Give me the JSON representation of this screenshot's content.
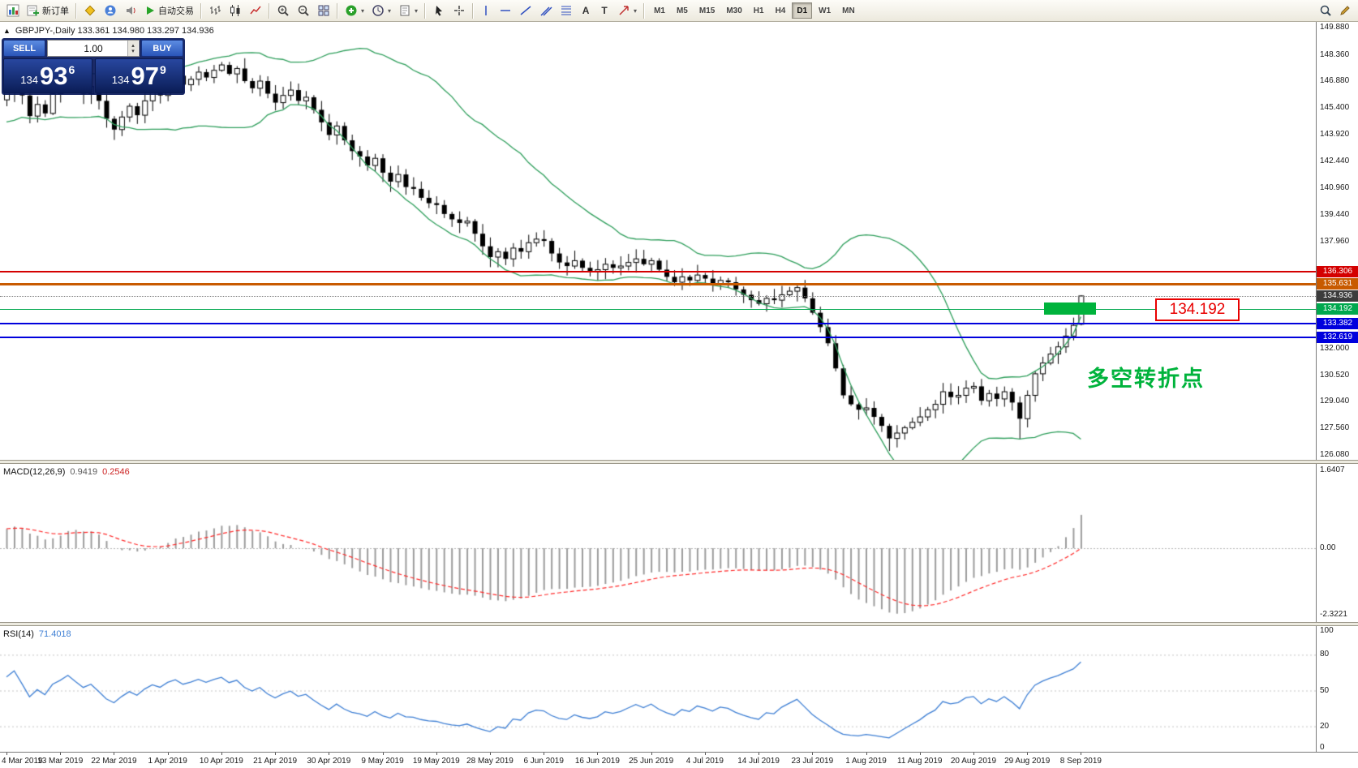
{
  "toolbar": {
    "new_order_label": "新订单",
    "auto_trading_label": "自动交易",
    "timeframes": [
      "M1",
      "M5",
      "M15",
      "M30",
      "H1",
      "H4",
      "D1",
      "W1",
      "MN"
    ],
    "active_timeframe": "D1"
  },
  "symbol_bar": {
    "collapse_icon": "▲",
    "text": "GBPJPY-,Daily 133.361 134.980 133.297 134.936"
  },
  "trade_panel": {
    "sell_label": "SELL",
    "buy_label": "BUY",
    "volume": "1.00",
    "sell_price": {
      "prefix": "134",
      "big": "93",
      "sup": "6"
    },
    "buy_price": {
      "prefix": "134",
      "big": "97",
      "sup": "9"
    }
  },
  "annotations": {
    "level_callout": "134.192",
    "turning_point": "多空转折点"
  },
  "indicators": {
    "macd": {
      "label": "MACD(12,26,9)",
      "value1": "0.9419",
      "value2": "0.2546",
      "scale": [
        "1.6407",
        "0.00",
        "-2.3221"
      ]
    },
    "rsi": {
      "label": "RSI(14)",
      "value": "71.4018",
      "scale": [
        "100",
        "80",
        "50",
        "20",
        "0"
      ]
    }
  },
  "price_axis": {
    "gridline_labels": [
      "149.880",
      "148.360",
      "146.880",
      "145.400",
      "143.920",
      "142.440",
      "140.960",
      "139.440",
      "137.960",
      "132.000",
      "130.520",
      "129.040",
      "127.560",
      "126.080"
    ]
  },
  "date_axis": [
    "4 Mar 2019",
    "13 Mar 2019",
    "22 Mar 2019",
    "1 Apr 2019",
    "10 Apr 2019",
    "21 Apr 2019",
    "30 Apr 2019",
    "9 May 2019",
    "19 May 2019",
    "28 May 2019",
    "6 Jun 2019",
    "16 Jun 2019",
    "25 Jun 2019",
    "4 Jul 2019",
    "14 Jul 2019",
    "23 Jul 2019",
    "1 Aug 2019",
    "11 Aug 2019",
    "20 Aug 2019",
    "29 Aug 2019",
    "8 Sep 2019"
  ],
  "chart_data": {
    "type": "candlestick",
    "symbol": "GBPJPY-",
    "timeframe": "Daily",
    "visible_bar_ohlc": {
      "open": 133.361,
      "high": 134.98,
      "low": 133.297,
      "close": 134.936
    },
    "y_axis_range": [
      126.08,
      149.88
    ],
    "closes": [
      146.3,
      146.9,
      146.1,
      144.95,
      145.6,
      145.1,
      146.2,
      146.7,
      147.4,
      146.8,
      146.2,
      146.6,
      145.8,
      144.8,
      144.2,
      144.9,
      145.5,
      145.0,
      145.8,
      146.4,
      146.1,
      146.8,
      147.2,
      146.7,
      147.0,
      147.4,
      147.1,
      147.5,
      147.8,
      147.3,
      147.6,
      146.9,
      146.5,
      146.9,
      146.2,
      145.7,
      146.1,
      146.4,
      145.8,
      146.0,
      145.3,
      144.6,
      143.9,
      144.4,
      143.6,
      143.0,
      142.7,
      142.2,
      142.6,
      141.8,
      141.3,
      141.7,
      141.0,
      140.9,
      140.4,
      140.1,
      140.0,
      139.5,
      139.2,
      139.0,
      139.1,
      138.4,
      137.7,
      137.1,
      137.4,
      137.0,
      137.6,
      137.4,
      137.9,
      138.1,
      138.0,
      137.3,
      136.8,
      136.6,
      136.9,
      136.5,
      136.3,
      136.4,
      136.7,
      136.5,
      136.6,
      136.8,
      137.0,
      136.7,
      136.9,
      136.4,
      136.0,
      135.7,
      136.0,
      135.8,
      136.1,
      135.9,
      135.6,
      135.8,
      135.7,
      135.3,
      135.0,
      134.7,
      134.5,
      134.8,
      134.7,
      135.0,
      135.2,
      135.4,
      134.8,
      134.0,
      133.2,
      132.3,
      130.9,
      129.4,
      128.9,
      128.6,
      128.7,
      128.2,
      127.7,
      127.0,
      127.3,
      127.6,
      127.9,
      128.2,
      128.6,
      128.9,
      129.6,
      129.3,
      129.4,
      129.8,
      129.9,
      129.1,
      129.5,
      129.2,
      129.6,
      129.0,
      128.1,
      129.4,
      130.6,
      131.2,
      131.7,
      132.1,
      132.7,
      133.3,
      134.94
    ],
    "overrides": {
      "lows": {
        "115": 126.3,
        "132": 126.95
      },
      "last_candle": {
        "o": 133.361,
        "h": 134.98,
        "l": 133.297,
        "c": 134.936
      }
    },
    "levels": [
      {
        "price": 136.306,
        "line_color": "#d40000",
        "line_width": 2,
        "tag_bg": "#d40000"
      },
      {
        "price": 135.631,
        "line_color": "#c85a00",
        "line_width": 3,
        "tag_bg": "#c85a00"
      },
      {
        "price": 134.936,
        "line_color": "#808080",
        "line_width": 1,
        "line_style": "dotted",
        "tag_bg": "#3c3c3c",
        "role": "current-price"
      },
      {
        "price": 134.192,
        "line_color": "#00a84e",
        "line_width": 1,
        "tag_bg": "#00a84e"
      },
      {
        "price": 133.382,
        "line_color": "#0000dd",
        "line_width": 2,
        "tag_bg": "#0000dd"
      },
      {
        "price": 132.619,
        "line_color": "#0000dd",
        "line_width": 2,
        "tag_bg": "#0000dd"
      }
    ],
    "indicators": {
      "bollinger": {
        "period": 20,
        "deviation": 2,
        "color": "#2e9e5b"
      },
      "macd": {
        "fast": 12,
        "slow": 26,
        "signal": 9,
        "histogram_color": "#9c9c9c",
        "signal_color": "#ff2a2a",
        "range": [
          -2.3221,
          1.6407
        ]
      },
      "rsi": {
        "period": 14,
        "color": "#3e7fd4",
        "levels": [
          80,
          50,
          20
        ]
      }
    },
    "candle_colors": {
      "bull": "#ffffff",
      "bear": "#000000",
      "outline": "#000000"
    }
  }
}
